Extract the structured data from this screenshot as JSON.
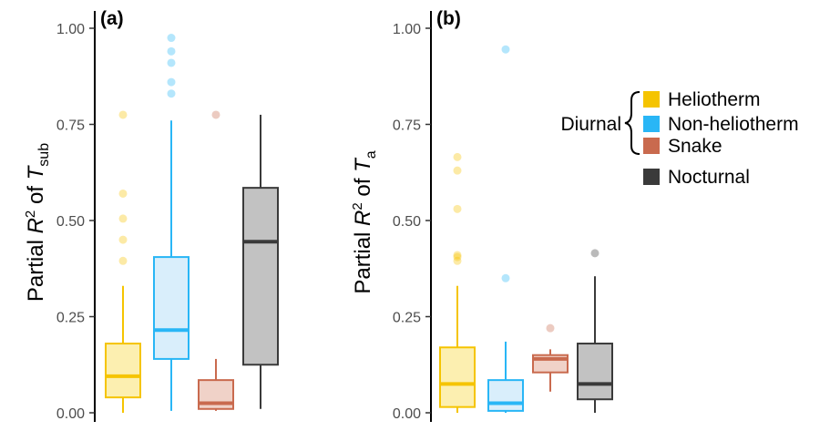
{
  "chart_data": [
    {
      "type": "box",
      "panel_label": "(a)",
      "ylabel": {
        "prefix": "Partial ",
        "R": "R",
        "sup": "2",
        "mid": " of ",
        "T": "T",
        "sub": "sub"
      },
      "ylim": [
        0,
        1
      ],
      "yticks": [
        "0.00",
        "0.25",
        "0.50",
        "0.75",
        "1.00"
      ],
      "ytick_values": [
        0,
        0.25,
        0.5,
        0.75,
        1.0
      ],
      "grid": false,
      "groups": [
        {
          "name": "Heliotherm",
          "whisker_low": 0.0,
          "q1": 0.04,
          "median": 0.095,
          "q3": 0.18,
          "whisker_high": 0.33,
          "outliers": [
            0.395,
            0.45,
            0.505,
            0.57,
            0.775
          ]
        },
        {
          "name": "Non-heliotherm",
          "whisker_low": 0.005,
          "q1": 0.14,
          "median": 0.215,
          "q3": 0.405,
          "whisker_high": 0.76,
          "outliers": [
            0.83,
            0.86,
            0.91,
            0.94,
            0.975
          ]
        },
        {
          "name": "Snake",
          "whisker_low": 0.005,
          "q1": 0.01,
          "median": 0.025,
          "q3": 0.085,
          "whisker_high": 0.14,
          "outliers": [
            0.775
          ]
        },
        {
          "name": "Nocturnal",
          "whisker_low": 0.01,
          "q1": 0.125,
          "median": 0.445,
          "q3": 0.585,
          "whisker_high": 0.775,
          "outliers": []
        }
      ]
    },
    {
      "type": "box",
      "panel_label": "(b)",
      "ylabel": {
        "prefix": "Partial ",
        "R": "R",
        "sup": "2",
        "mid": " of ",
        "T": "T",
        "sub": "a"
      },
      "ylim": [
        0,
        1
      ],
      "yticks": [
        "0.00",
        "0.25",
        "0.50",
        "0.75",
        "1.00"
      ],
      "ytick_values": [
        0,
        0.25,
        0.5,
        0.75,
        1.0
      ],
      "grid": false,
      "groups": [
        {
          "name": "Heliotherm",
          "whisker_low": 0.0,
          "q1": 0.015,
          "median": 0.075,
          "q3": 0.17,
          "whisker_high": 0.33,
          "outliers": [
            0.395,
            0.405,
            0.41,
            0.53,
            0.63,
            0.665
          ]
        },
        {
          "name": "Non-heliotherm",
          "whisker_low": 0.0,
          "q1": 0.005,
          "median": 0.025,
          "q3": 0.085,
          "whisker_high": 0.185,
          "outliers": [
            0.35,
            0.945
          ]
        },
        {
          "name": "Snake",
          "whisker_low": 0.055,
          "q1": 0.105,
          "median": 0.14,
          "q3": 0.15,
          "whisker_high": 0.165,
          "outliers": [
            0.22
          ]
        },
        {
          "name": "Nocturnal",
          "whisker_low": 0.0,
          "q1": 0.035,
          "median": 0.075,
          "q3": 0.18,
          "whisker_high": 0.355,
          "outliers": [
            0.415
          ]
        }
      ]
    }
  ],
  "legend": {
    "position": "right",
    "group_label": "Diurnal",
    "entries": [
      {
        "name": "Heliotherm",
        "color": "#f5c400",
        "fill": "#fcefb0"
      },
      {
        "name": "Non-heliotherm",
        "color": "#29b6f6",
        "fill": "#d9eefb"
      },
      {
        "name": "Snake",
        "color": "#c96a4e",
        "fill": "#f0d2c8"
      },
      {
        "name": "Nocturnal",
        "color": "#3a3a3a",
        "fill": "#c2c2c2"
      }
    ]
  }
}
